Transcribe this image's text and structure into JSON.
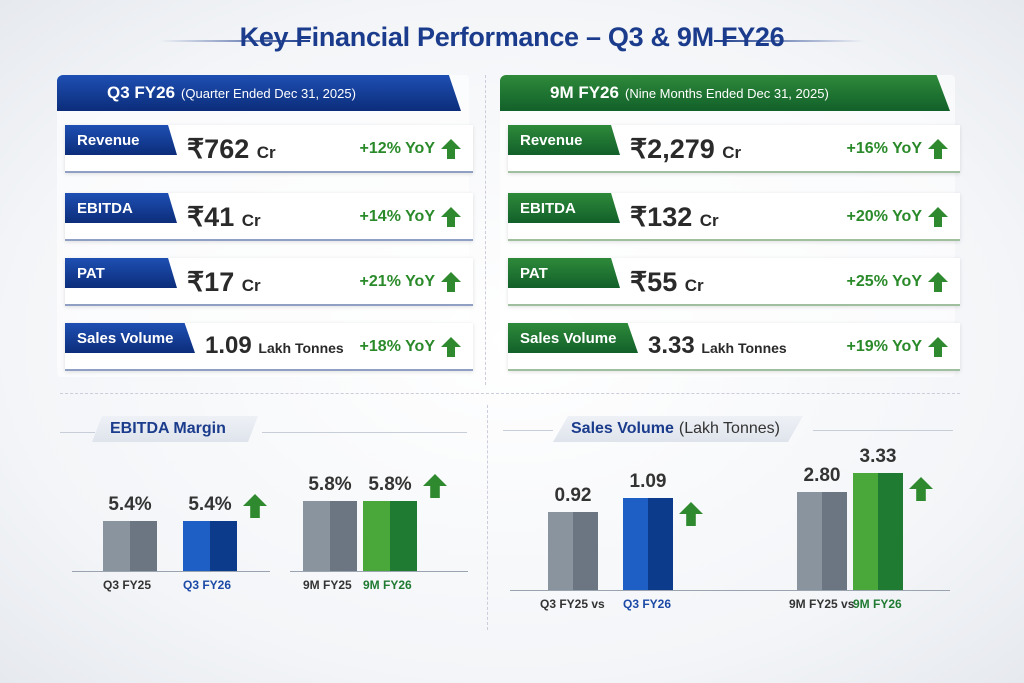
{
  "title": "Key Financial Performance – Q3 & 9M FY26",
  "q3": {
    "header": "Q3 FY26",
    "sub": "(Quarter Ended Dec 31, 2025)",
    "rows": [
      {
        "label": "Revenue",
        "value": "₹762",
        "unit": "Cr",
        "yoy": "+12% YoY"
      },
      {
        "label": "EBITDA",
        "value": "₹41",
        "unit": "Cr",
        "yoy": "+14% YoY"
      },
      {
        "label": "PAT",
        "value": "₹17",
        "unit": "Cr",
        "yoy": "+21% YoY"
      },
      {
        "label": "Sales Volume",
        "value": "1.09",
        "unit": "Lakh Tonnes",
        "yoy": "+18% YoY"
      }
    ]
  },
  "nm": {
    "header": "9M FY26",
    "sub": "(Nine Months Ended Dec 31, 2025)",
    "rows": [
      {
        "label": "Revenue",
        "value": "₹2,279",
        "unit": "Cr",
        "yoy": "+16% YoY"
      },
      {
        "label": "EBITDA",
        "value": "₹132",
        "unit": "Cr",
        "yoy": "+20% YoY"
      },
      {
        "label": "PAT",
        "value": "₹55",
        "unit": "Cr",
        "yoy": "+25% YoY"
      },
      {
        "label": "Sales Volume",
        "value": "3.33",
        "unit": "Lakh Tonnes",
        "yoy": "+19% YoY"
      }
    ]
  },
  "chart_data": [
    {
      "type": "bar",
      "title": "EBITDA Margin",
      "categories": [
        "Q3 FY25",
        "Q3 FY26",
        "9M FY25",
        "9M FY26"
      ],
      "values": [
        5.4,
        5.4,
        5.8,
        5.8
      ],
      "labels": [
        "5.4%",
        "5.4%",
        "5.8%",
        "5.8%"
      ],
      "unit": "%"
    },
    {
      "type": "bar",
      "title": "Sales Volume",
      "title_note": "(Lakh Tonnes)",
      "categories": [
        "Q3 FY25",
        "Q3 FY26",
        "9M FY25",
        "9M FY26"
      ],
      "values": [
        0.92,
        1.09,
        2.8,
        3.33
      ],
      "labels": [
        "0.92",
        "1.09",
        "2.80",
        "3.33"
      ],
      "vs": "vs"
    }
  ],
  "colors": {
    "blue": "#1b3c8c",
    "green": "#1f7a32",
    "gray": "#7a848f",
    "up": "#2f8a2f"
  }
}
